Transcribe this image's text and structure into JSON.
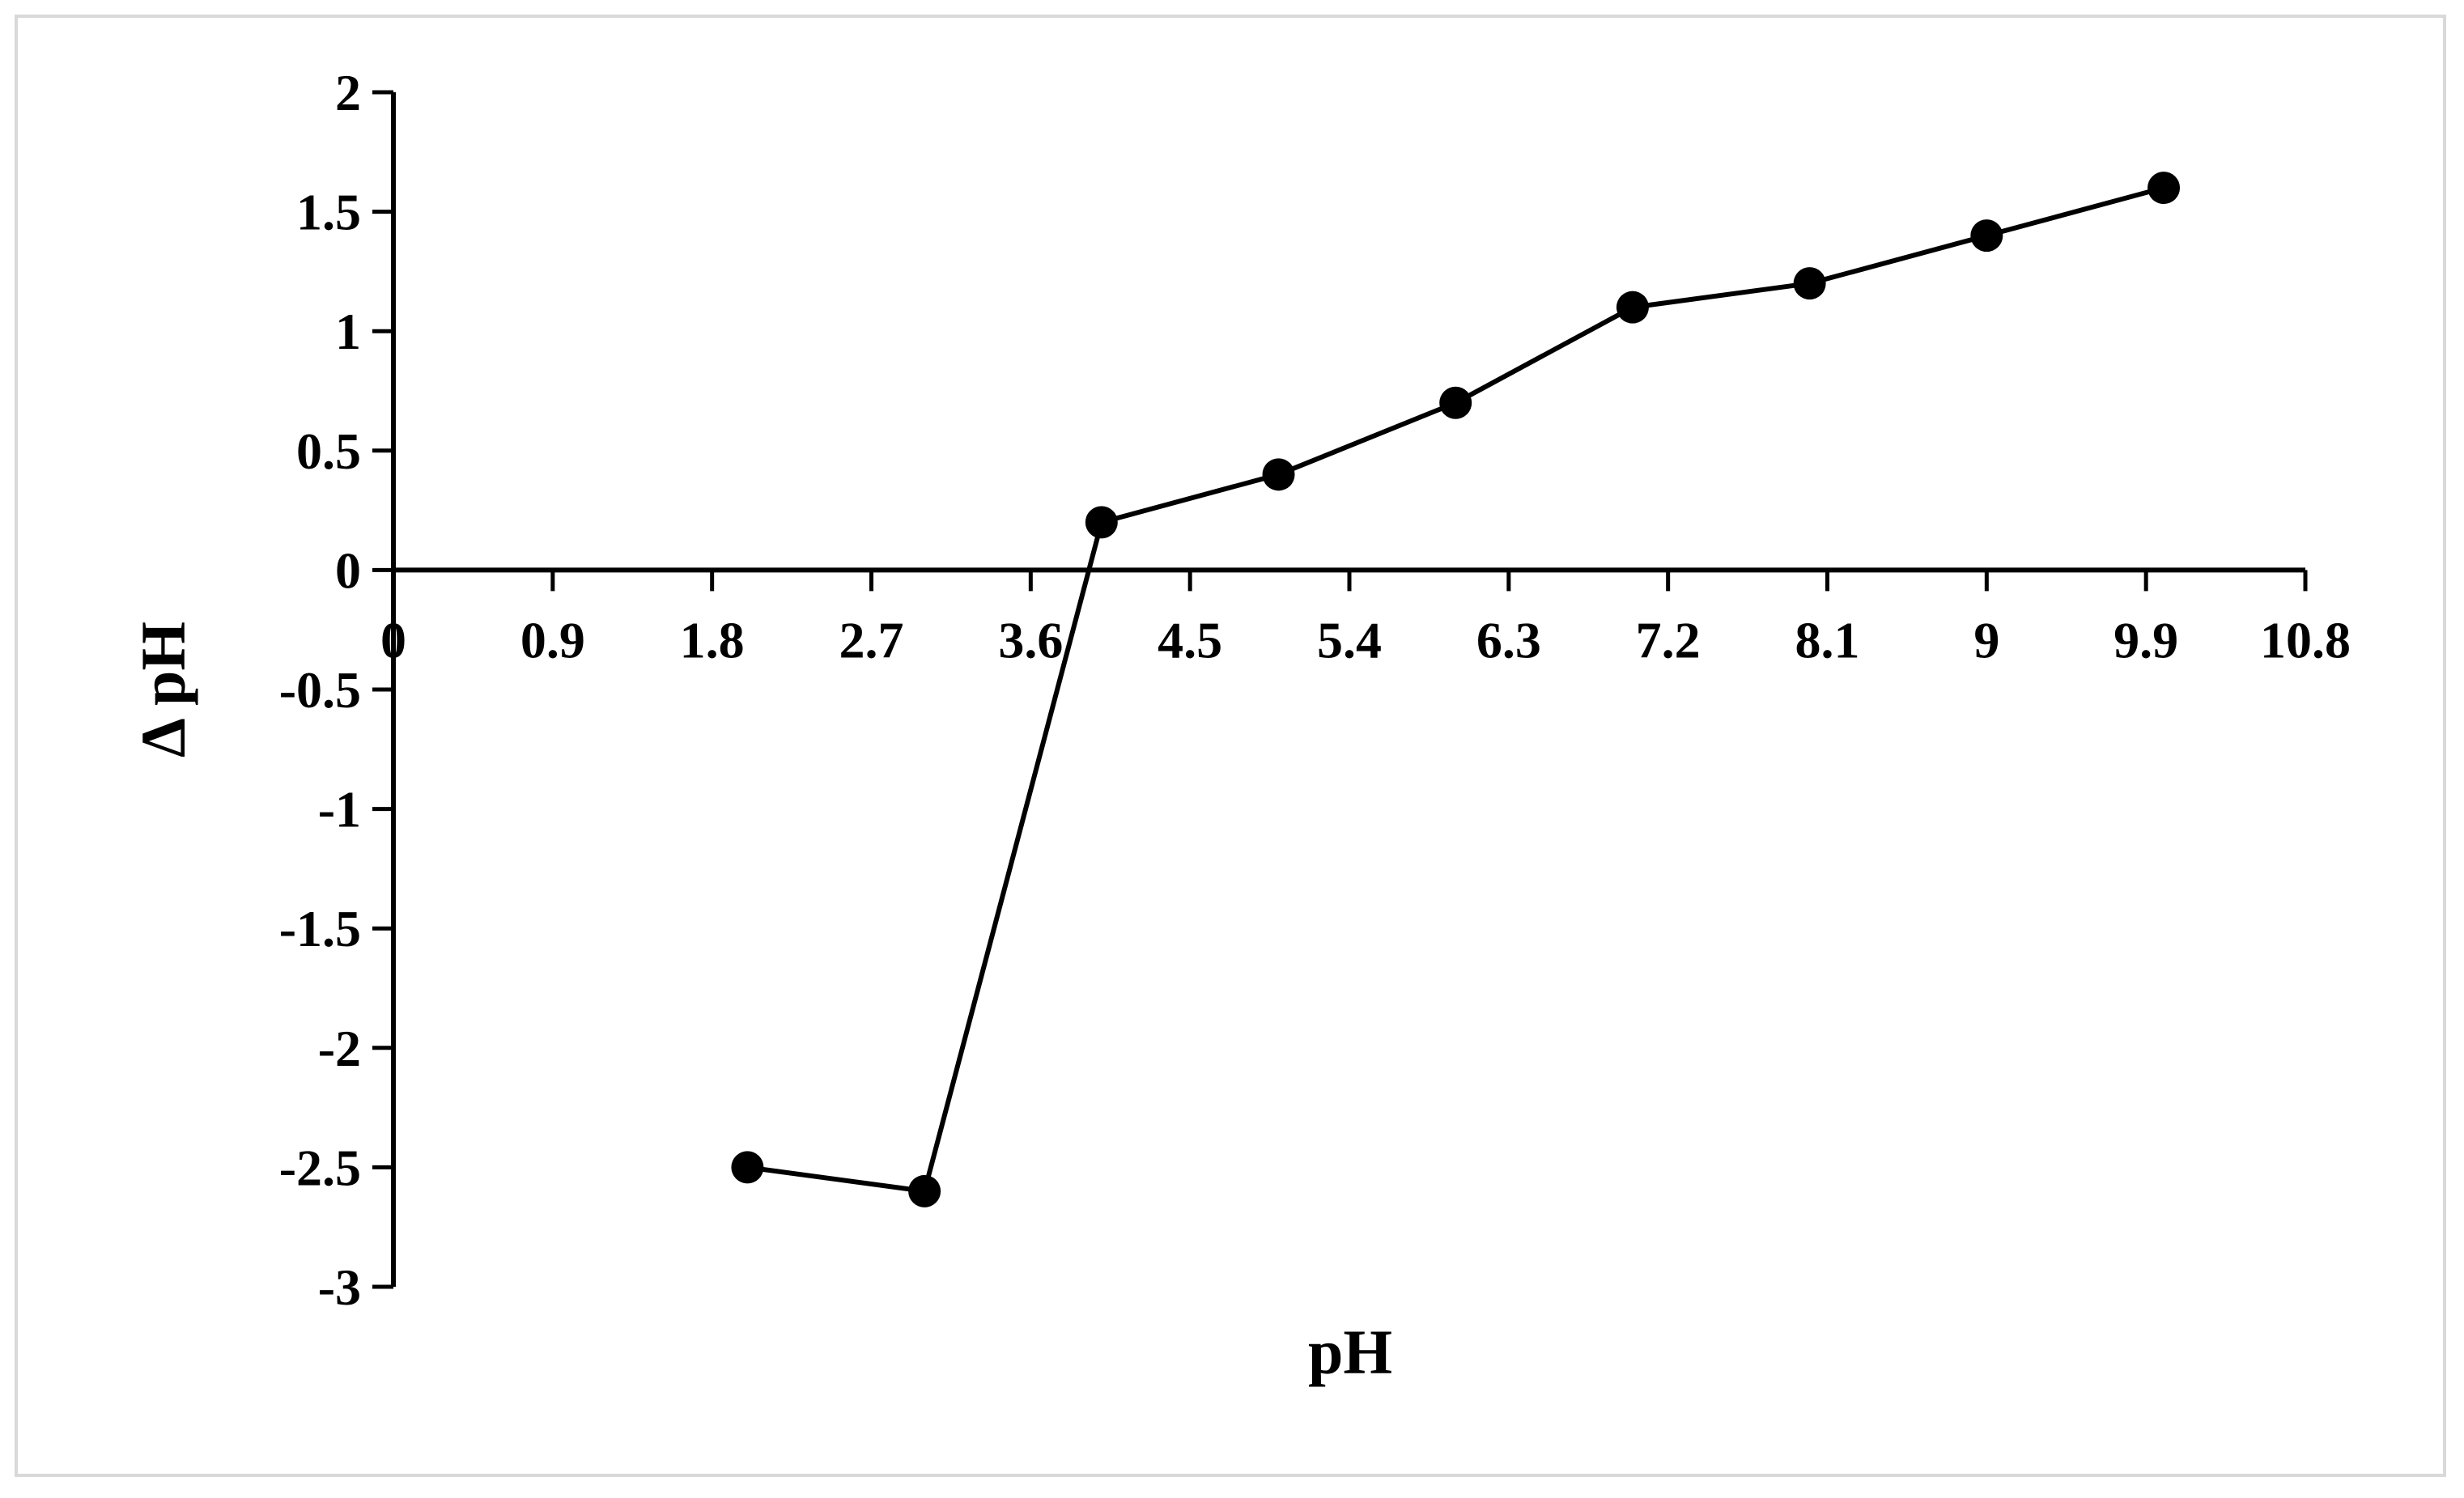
{
  "chart_data": {
    "type": "line",
    "xlabel": "pH",
    "ylabel": "Δ pH",
    "xlim": [
      0,
      10.8
    ],
    "ylim": [
      -3,
      2
    ],
    "x_ticks": [
      "0",
      "0.9",
      "1.8",
      "2.7",
      "3.6",
      "4.5",
      "5.4",
      "6.3",
      "7.2",
      "8.1",
      "9",
      "9.9",
      "10.8"
    ],
    "y_ticks": [
      "2",
      "1.5",
      "1",
      "0.5",
      "0",
      "-0.5",
      "-1",
      "-1.5",
      "-2",
      "-2.5",
      "-3"
    ],
    "grid": false,
    "legend": "none",
    "series": [
      {
        "x": [
          2,
          3,
          4,
          5,
          6,
          7,
          8,
          9,
          10
        ],
        "y": [
          -2.5,
          -2.6,
          0.2,
          0.4,
          0.7,
          1.1,
          1.2,
          1.4,
          1.6
        ]
      }
    ],
    "colors": {
      "line": "#000000",
      "marker": "#000000",
      "axis": "#000000",
      "frame": "#d9d9d9"
    }
  }
}
